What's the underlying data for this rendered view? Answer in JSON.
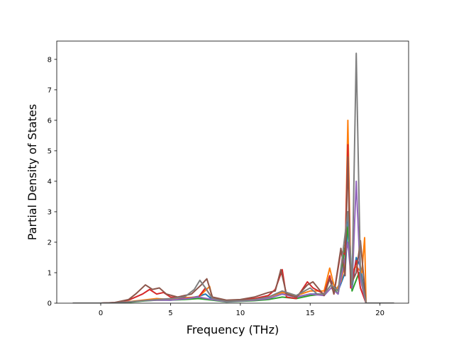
{
  "chart_data": {
    "type": "line",
    "title": "",
    "xlabel": "Frequency (THz)",
    "ylabel": "Partial Density of States",
    "xlim": [
      -3.15,
      22.05
    ],
    "ylim": [
      0,
      8.6
    ],
    "x_ticks": [
      0,
      5,
      10,
      15,
      20
    ],
    "y_ticks": [
      0,
      1,
      2,
      3,
      4,
      5,
      6,
      7,
      8
    ],
    "grid": false,
    "legend": "none",
    "series": [
      {
        "color": "#1f77b4",
        "points": [
          [
            -2,
            0
          ],
          [
            0,
            0
          ],
          [
            1,
            0.01
          ],
          [
            2,
            0.04
          ],
          [
            3,
            0.08
          ],
          [
            4,
            0.12
          ],
          [
            5,
            0.1
          ],
          [
            6,
            0.15
          ],
          [
            7,
            0.22
          ],
          [
            7.5,
            0.3
          ],
          [
            8,
            0.12
          ],
          [
            9,
            0.05
          ],
          [
            10,
            0.07
          ],
          [
            11,
            0.1
          ],
          [
            12,
            0.15
          ],
          [
            13,
            0.3
          ],
          [
            14,
            0.2
          ],
          [
            15,
            0.3
          ],
          [
            16,
            0.3
          ],
          [
            16.4,
            0.8
          ],
          [
            17,
            0.4
          ],
          [
            17.5,
            1.0
          ],
          [
            17.75,
            3.0
          ],
          [
            18,
            0.5
          ],
          [
            18.3,
            1.5
          ],
          [
            18.6,
            1.2
          ],
          [
            19,
            0
          ],
          [
            21,
            0
          ]
        ]
      },
      {
        "color": "#ff7f0e",
        "points": [
          [
            -2,
            0
          ],
          [
            0,
            0
          ],
          [
            1,
            0.01
          ],
          [
            2,
            0.05
          ],
          [
            3,
            0.1
          ],
          [
            4,
            0.15
          ],
          [
            5,
            0.12
          ],
          [
            6,
            0.18
          ],
          [
            7,
            0.2
          ],
          [
            7.8,
            0.55
          ],
          [
            8,
            0.12
          ],
          [
            9,
            0.06
          ],
          [
            10,
            0.08
          ],
          [
            11,
            0.12
          ],
          [
            12,
            0.2
          ],
          [
            13,
            0.35
          ],
          [
            14,
            0.25
          ],
          [
            15,
            0.4
          ],
          [
            16,
            0.4
          ],
          [
            16.4,
            1.15
          ],
          [
            16.8,
            0.4
          ],
          [
            17.2,
            0.7
          ],
          [
            17.5,
            1.3
          ],
          [
            17.7,
            6.0
          ],
          [
            17.9,
            1.0
          ],
          [
            18.3,
            1.2
          ],
          [
            18.7,
            1.0
          ],
          [
            18.9,
            2.15
          ],
          [
            19,
            0
          ],
          [
            21,
            0
          ]
        ]
      },
      {
        "color": "#2ca02c",
        "points": [
          [
            -2,
            0
          ],
          [
            0,
            0
          ],
          [
            1,
            0.01
          ],
          [
            2,
            0.03
          ],
          [
            3,
            0.07
          ],
          [
            4,
            0.1
          ],
          [
            5,
            0.1
          ],
          [
            6,
            0.12
          ],
          [
            7,
            0.15
          ],
          [
            8,
            0.1
          ],
          [
            9,
            0.04
          ],
          [
            10,
            0.06
          ],
          [
            11,
            0.08
          ],
          [
            12,
            0.12
          ],
          [
            13,
            0.2
          ],
          [
            14,
            0.15
          ],
          [
            15,
            0.25
          ],
          [
            16,
            0.3
          ],
          [
            16.5,
            0.6
          ],
          [
            17,
            0.3
          ],
          [
            17.7,
            2.5
          ],
          [
            18,
            0.4
          ],
          [
            18.5,
            1.0
          ],
          [
            19,
            0
          ],
          [
            21,
            0
          ]
        ]
      },
      {
        "color": "#d62728",
        "points": [
          [
            -2,
            0
          ],
          [
            0,
            0
          ],
          [
            1,
            0.02
          ],
          [
            2,
            0.1
          ],
          [
            3,
            0.3
          ],
          [
            3.5,
            0.45
          ],
          [
            4,
            0.3
          ],
          [
            4.5,
            0.35
          ],
          [
            5,
            0.2
          ],
          [
            6,
            0.15
          ],
          [
            7,
            0.2
          ],
          [
            7.5,
            0.5
          ],
          [
            8,
            0.15
          ],
          [
            9,
            0.08
          ],
          [
            10,
            0.1
          ],
          [
            11,
            0.15
          ],
          [
            12,
            0.25
          ],
          [
            12.5,
            0.45
          ],
          [
            13,
            1.1
          ],
          [
            13.3,
            0.2
          ],
          [
            14,
            0.15
          ],
          [
            14.8,
            0.7
          ],
          [
            15.2,
            0.5
          ],
          [
            16,
            0.3
          ],
          [
            16.4,
            0.9
          ],
          [
            16.7,
            0.3
          ],
          [
            17.2,
            1.7
          ],
          [
            17.5,
            1.6
          ],
          [
            17.7,
            5.2
          ],
          [
            17.9,
            0.5
          ],
          [
            18.3,
            1.4
          ],
          [
            18.6,
            0.5
          ],
          [
            19,
            0
          ],
          [
            21,
            0
          ]
        ]
      },
      {
        "color": "#9467bd",
        "points": [
          [
            -2,
            0
          ],
          [
            0,
            0
          ],
          [
            1,
            0.01
          ],
          [
            2,
            0.04
          ],
          [
            3,
            0.08
          ],
          [
            4,
            0.1
          ],
          [
            5,
            0.1
          ],
          [
            6,
            0.14
          ],
          [
            7,
            0.2
          ],
          [
            8,
            0.12
          ],
          [
            9,
            0.05
          ],
          [
            10,
            0.07
          ],
          [
            11,
            0.1
          ],
          [
            12,
            0.15
          ],
          [
            13,
            0.3
          ],
          [
            14,
            0.2
          ],
          [
            15,
            0.3
          ],
          [
            16,
            0.25
          ],
          [
            16.5,
            0.5
          ],
          [
            17,
            0.3
          ],
          [
            17.7,
            2.0
          ],
          [
            18,
            0.5
          ],
          [
            18.3,
            4.0
          ],
          [
            18.6,
            0.8
          ],
          [
            19,
            0
          ],
          [
            21,
            0
          ]
        ]
      },
      {
        "color": "#8c564b",
        "points": [
          [
            -2,
            0
          ],
          [
            0,
            0
          ],
          [
            1,
            0.02
          ],
          [
            2,
            0.12
          ],
          [
            2.5,
            0.3
          ],
          [
            3.2,
            0.6
          ],
          [
            3.7,
            0.45
          ],
          [
            4.2,
            0.5
          ],
          [
            4.7,
            0.3
          ],
          [
            5.5,
            0.2
          ],
          [
            6.5,
            0.3
          ],
          [
            7.2,
            0.6
          ],
          [
            7.6,
            0.8
          ],
          [
            8,
            0.2
          ],
          [
            9,
            0.1
          ],
          [
            10,
            0.12
          ],
          [
            11,
            0.2
          ],
          [
            12,
            0.35
          ],
          [
            12.5,
            0.4
          ],
          [
            12.9,
            1.1
          ],
          [
            13.3,
            0.3
          ],
          [
            14,
            0.2
          ],
          [
            14.8,
            0.6
          ],
          [
            15.2,
            0.7
          ],
          [
            16,
            0.25
          ],
          [
            16.4,
            0.8
          ],
          [
            16.7,
            0.3
          ],
          [
            17.2,
            1.8
          ],
          [
            17.5,
            0.9
          ],
          [
            17.7,
            4.8
          ],
          [
            17.9,
            0.6
          ],
          [
            18.3,
            1.0
          ],
          [
            18.6,
            2.05
          ],
          [
            19,
            0
          ],
          [
            21,
            0
          ]
        ]
      },
      {
        "color": "#7f7f7f",
        "points": [
          [
            -2,
            0
          ],
          [
            0,
            0
          ],
          [
            1,
            0.01
          ],
          [
            2,
            0.04
          ],
          [
            3,
            0.08
          ],
          [
            4,
            0.12
          ],
          [
            5,
            0.15
          ],
          [
            6,
            0.2
          ],
          [
            6.7,
            0.45
          ],
          [
            7.1,
            0.75
          ],
          [
            7.5,
            0.5
          ],
          [
            8,
            0.15
          ],
          [
            9,
            0.06
          ],
          [
            10,
            0.08
          ],
          [
            11,
            0.12
          ],
          [
            12,
            0.2
          ],
          [
            13,
            0.4
          ],
          [
            14,
            0.25
          ],
          [
            15,
            0.5
          ],
          [
            15.5,
            0.3
          ],
          [
            16,
            0.3
          ],
          [
            16.5,
            0.6
          ],
          [
            17,
            0.4
          ],
          [
            17.7,
            3.0
          ],
          [
            18,
            0.6
          ],
          [
            18.3,
            8.2
          ],
          [
            18.6,
            1.0
          ],
          [
            19,
            0
          ],
          [
            21,
            0
          ]
        ]
      }
    ]
  }
}
